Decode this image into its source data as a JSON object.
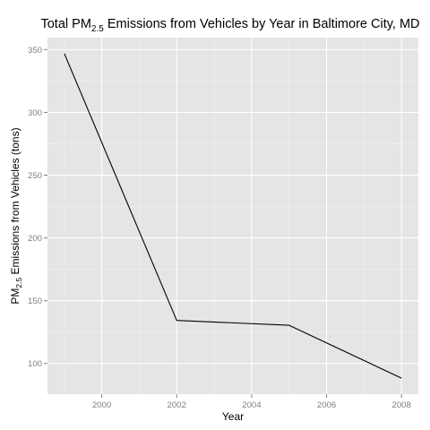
{
  "chart_data": {
    "type": "line",
    "title": {
      "prefix": "Total PM",
      "subscript": "2.5",
      "suffix": " Emissions from Vehicles by Year in Baltimore City, MD"
    },
    "xlabel": "Year",
    "ylabel": {
      "prefix": "PM",
      "subscript": "2.5",
      "suffix": " Emissions from Vehicles (tons)"
    },
    "x": [
      1999,
      2002,
      2005,
      2008
    ],
    "series": [
      {
        "values": [
          346.82,
          134.31,
          130.43,
          88.28
        ],
        "color": "#000000"
      }
    ],
    "xlim": [
      1998.55,
      2008.45
    ],
    "ylim": [
      75.56,
      359.54
    ],
    "x_ticks": [
      2000,
      2002,
      2004,
      2006,
      2008
    ],
    "x_tick_labels": [
      "2000",
      "2002",
      "2004",
      "2006",
      "2008"
    ],
    "y_ticks": [
      100,
      150,
      200,
      250,
      300,
      350
    ],
    "y_tick_labels": [
      "100",
      "150",
      "200",
      "250",
      "300",
      "350"
    ],
    "grid": true,
    "legend": "none",
    "colors": {
      "panel_background": "#e5e5e5",
      "grid_major": "#ffffff",
      "grid_minor": "#f2f2f2",
      "tick_label": "#7f7f7f",
      "tick_mark": "#7f7f7f",
      "line": "#000000"
    }
  }
}
